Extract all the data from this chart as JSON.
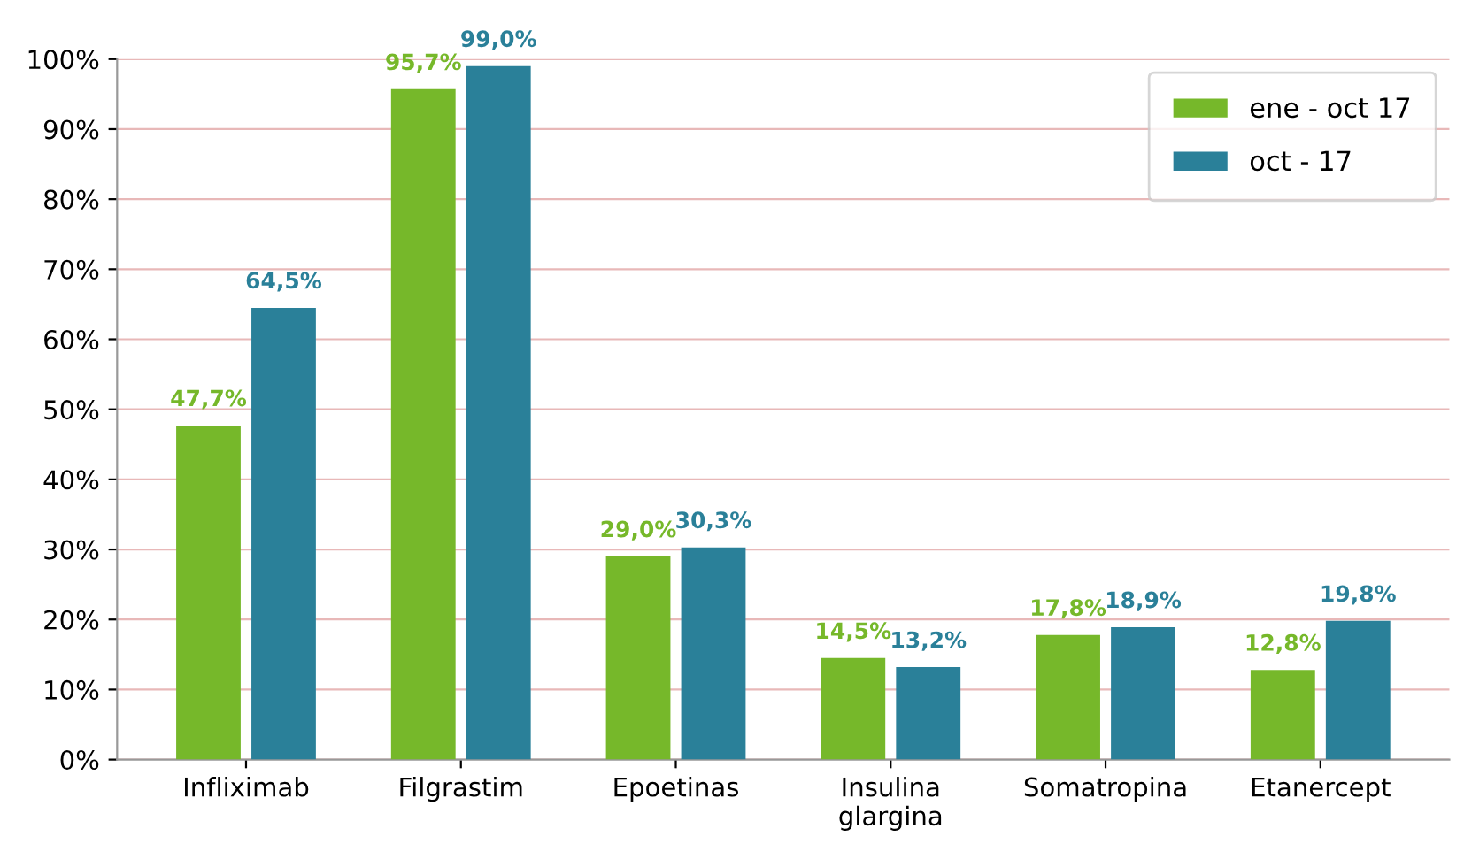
{
  "chart_data": {
    "type": "bar",
    "categories": [
      "Infliximab",
      "Filgrastim",
      "Epoetinas",
      "Insulina\nglargina",
      "Somatropina",
      "Etanercept"
    ],
    "series": [
      {
        "name": "ene - oct 17",
        "color": "#76b82a",
        "values": [
          47.7,
          95.7,
          29.0,
          14.5,
          17.8,
          12.8
        ],
        "value_labels": [
          "47,7%",
          "95,7%",
          "29,0%",
          "14,5%",
          "17,8%",
          "12,8%"
        ]
      },
      {
        "name": "oct - 17",
        "color": "#2a8099",
        "values": [
          64.5,
          99.0,
          30.3,
          13.2,
          18.9,
          19.8
        ],
        "value_labels": [
          "64,5%",
          "99,0%",
          "30,3%",
          "13,2%",
          "18,9%",
          "19,8%"
        ]
      }
    ],
    "ylim": [
      0,
      100
    ],
    "yticks": [
      {
        "value": 0,
        "label": "0%"
      },
      {
        "value": 10,
        "label": "10%"
      },
      {
        "value": 20,
        "label": "20%"
      },
      {
        "value": 30,
        "label": "30%"
      },
      {
        "value": 40,
        "label": "40%"
      },
      {
        "value": 50,
        "label": "50%"
      },
      {
        "value": 60,
        "label": "60%"
      },
      {
        "value": 70,
        "label": "70%"
      },
      {
        "value": 80,
        "label": "80%"
      },
      {
        "value": 90,
        "label": "90%"
      },
      {
        "value": 100,
        "label": "100%"
      }
    ],
    "grid": "y",
    "legend": "top right"
  }
}
